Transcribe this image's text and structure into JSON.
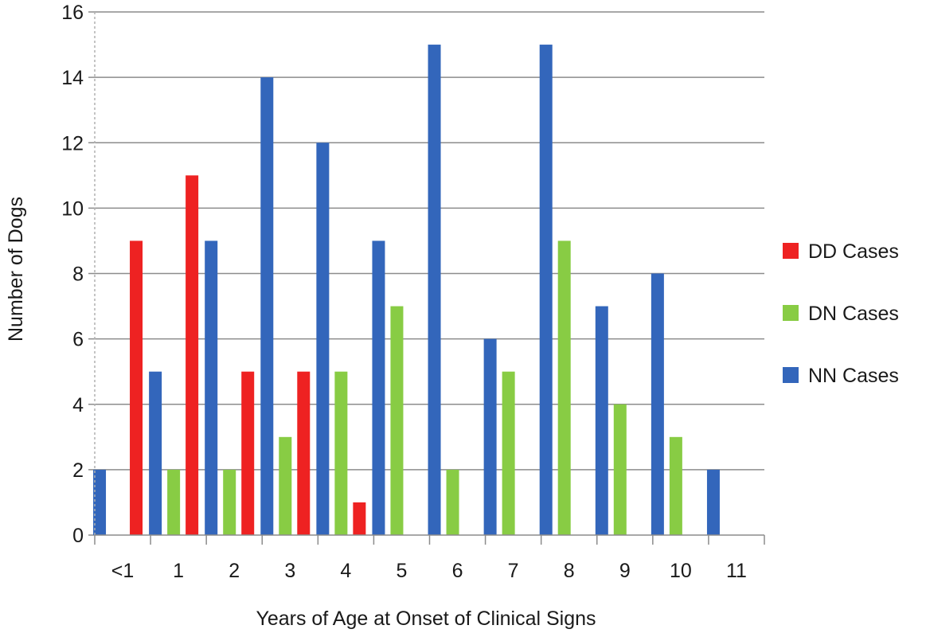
{
  "chart_data": {
    "type": "bar",
    "title": "",
    "xlabel": "Years of Age at Onset of Clinical Signs",
    "ylabel": "Number of Dogs",
    "ylim": [
      0,
      16
    ],
    "yticks": [
      0,
      2,
      4,
      6,
      8,
      10,
      12,
      14,
      16
    ],
    "grid": "horizontal",
    "legend_position": "right",
    "categories": [
      "<1",
      "1",
      "2",
      "3",
      "4",
      "5",
      "6",
      "7",
      "8",
      "9",
      "10",
      "11"
    ],
    "series": [
      {
        "name": "NN Cases",
        "color": "#3366bb",
        "values": [
          2,
          5,
          9,
          14,
          12,
          9,
          15,
          6,
          15,
          7,
          8,
          2
        ]
      },
      {
        "name": "DN Cases",
        "color": "#88cc44",
        "values": [
          0,
          2,
          2,
          3,
          5,
          7,
          2,
          5,
          9,
          4,
          3,
          0
        ]
      },
      {
        "name": "DD Cases",
        "color": "#ee2222",
        "values": [
          9,
          11,
          5,
          5,
          1,
          0,
          0,
          0,
          0,
          0,
          0,
          0
        ]
      }
    ],
    "legend_order": [
      "DD Cases",
      "DN Cases",
      "NN Cases"
    ]
  }
}
